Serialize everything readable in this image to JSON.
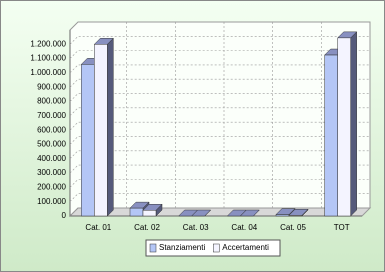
{
  "chart_data": {
    "type": "bar3d",
    "categories": [
      "Cat. 01",
      "Cat. 02",
      "Cat. 03",
      "Cat. 04",
      "Cat. 05",
      "TOT"
    ],
    "series": [
      {
        "name": "Stanziamenti",
        "color": "#b4c6f6",
        "values": [
          1060000,
          55000,
          0,
          0,
          10000,
          1125000
        ]
      },
      {
        "name": "Accertamenti",
        "color": "#f4f4ff",
        "values": [
          1200000,
          40000,
          0,
          0,
          5000,
          1245000
        ]
      }
    ],
    "ylim": [
      0,
      1300000
    ],
    "yticks": [
      0,
      {
        "value": 100000,
        "label": "100.000"
      },
      {
        "value": 200000,
        "label": "200.000"
      },
      {
        "value": 300000,
        "label": "300.000"
      },
      {
        "value": 400000,
        "label": "400.000"
      },
      {
        "value": 500000,
        "label": "500.000"
      },
      {
        "value": 600000,
        "label": "600.000"
      },
      {
        "value": 700000,
        "label": "700.000"
      },
      {
        "value": 800000,
        "label": "800.000"
      },
      {
        "value": 900000,
        "label": "900.000"
      },
      {
        "value": 1000000,
        "label": "1.000.000"
      },
      {
        "value": 1100000,
        "label": "1.100.000"
      },
      {
        "value": 1200000,
        "label": "1.200.000"
      }
    ],
    "grid": true,
    "legend": "bottom"
  }
}
